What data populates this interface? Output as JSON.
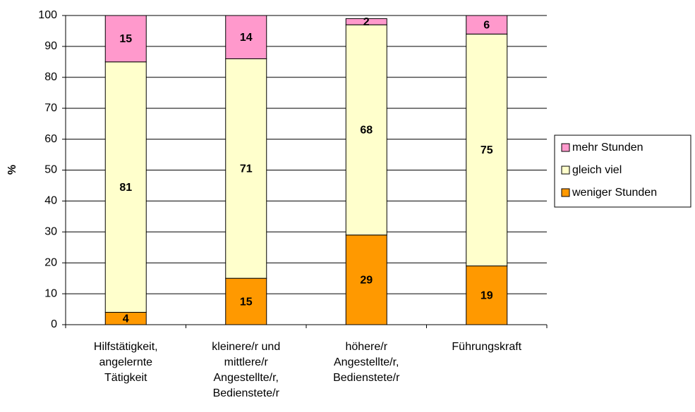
{
  "chart_data": {
    "type": "stacked_bar",
    "y_label": "%",
    "categories": [
      [
        "Hilfstätigkeit,",
        "angelernte",
        "Tätigkeit"
      ],
      [
        "kleinere/r und",
        "mittlere/r",
        "Angestellte/r,",
        "Bedienstete/r"
      ],
      [
        "höhere/r",
        "Angestellte/r,",
        "Bedienstete/r"
      ],
      [
        "Führungskraft"
      ]
    ],
    "series": [
      {
        "name": "weniger Stunden",
        "color": "#ff9900",
        "values": [
          4,
          15,
          29,
          19
        ]
      },
      {
        "name": "gleich viel",
        "color": "#ffffcc",
        "values": [
          81,
          71,
          68,
          75
        ]
      },
      {
        "name": "mehr Stunden",
        "color": "#ff99cc",
        "values": [
          15,
          14,
          2,
          6
        ]
      }
    ],
    "ylim": [
      0,
      100
    ],
    "yticks": [
      0,
      10,
      20,
      30,
      40,
      50,
      60,
      70,
      80,
      90,
      100
    ],
    "grid": true,
    "legend": "right"
  }
}
